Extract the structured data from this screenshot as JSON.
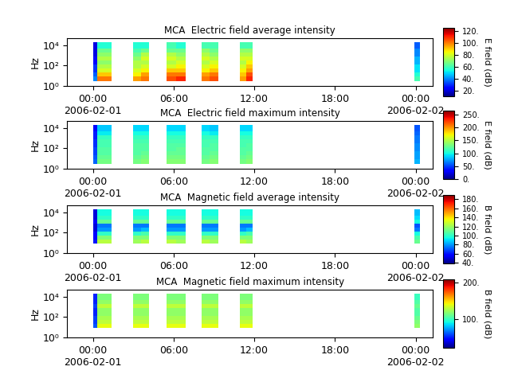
{
  "chart_data": [
    {
      "type": "heatmap",
      "title": "MCA  Electric field average intensity",
      "y_label": "Hz",
      "log": "y",
      "x_edges": [
        0.0,
        0.3,
        1.4,
        3.0,
        3.6,
        4.2,
        5.5,
        6.2,
        6.9,
        8.1,
        8.7,
        9.3,
        10.9,
        11.4,
        11.9,
        23.9,
        24.3
      ],
      "y_edges": [
        3,
        8,
        20,
        50,
        120,
        300,
        800,
        2000,
        5000,
        20000
      ],
      "cells": [
        [
          40,
          100,
          null,
          95,
          100,
          null,
          105,
          110,
          null,
          100,
          105,
          null,
          95,
          110,
          null,
          60
        ],
        [
          35,
          90,
          null,
          85,
          95,
          null,
          100,
          100,
          null,
          95,
          100,
          null,
          90,
          105,
          null,
          55
        ],
        [
          30,
          80,
          null,
          80,
          85,
          null,
          90,
          90,
          null,
          85,
          90,
          null,
          85,
          95,
          null,
          50
        ],
        [
          30,
          75,
          null,
          75,
          80,
          null,
          80,
          85,
          null,
          80,
          85,
          null,
          80,
          90,
          null,
          50
        ],
        [
          25,
          70,
          null,
          75,
          75,
          null,
          75,
          80,
          null,
          75,
          80,
          null,
          75,
          85,
          null,
          45
        ],
        [
          25,
          75,
          null,
          70,
          80,
          null,
          80,
          75,
          null,
          80,
          75,
          null,
          80,
          80,
          null,
          45
        ],
        [
          20,
          70,
          null,
          65,
          75,
          null,
          75,
          70,
          null,
          75,
          70,
          null,
          75,
          75,
          null,
          40
        ],
        [
          20,
          65,
          null,
          60,
          65,
          null,
          65,
          65,
          null,
          70,
          65,
          null,
          70,
          70,
          null,
          40
        ],
        [
          20,
          55,
          null,
          55,
          55,
          null,
          60,
          55,
          null,
          60,
          60,
          null,
          60,
          60,
          null,
          35
        ]
      ],
      "xlim": [
        -1.9,
        25.25
      ],
      "xticks": [
        {
          "value": 0,
          "label": "00:00\n2006-02-01"
        },
        {
          "value": 6,
          "label": "06:00"
        },
        {
          "value": 12,
          "label": "12:00"
        },
        {
          "value": 18,
          "label": "18:00"
        },
        {
          "value": 24,
          "label": "00:00\n2006-02-02"
        }
      ],
      "ylim": [
        1,
        50000
      ],
      "yticks": [
        {
          "value": 1,
          "label": "10⁰"
        },
        {
          "value": 100,
          "label": "10²"
        },
        {
          "value": 10000,
          "label": "10⁴"
        }
      ],
      "colorbar": {
        "label": "E field (dB)",
        "range": [
          10,
          125
        ],
        "ticks": [
          {
            "value": 20,
            "label": "20."
          },
          {
            "value": 40,
            "label": "40."
          },
          {
            "value": 60,
            "label": "60."
          },
          {
            "value": 80,
            "label": "80."
          },
          {
            "value": 100,
            "label": "100."
          },
          {
            "value": 120,
            "label": "120."
          }
        ]
      }
    },
    {
      "type": "heatmap",
      "title": "MCA  Electric field maximum intensity",
      "y_label": "Hz",
      "log": "y",
      "x_edges": [
        0.0,
        0.3,
        1.4,
        3.0,
        3.6,
        4.2,
        5.5,
        6.2,
        6.9,
        8.1,
        8.7,
        9.3,
        10.9,
        11.4,
        11.9,
        23.9,
        24.3
      ],
      "y_edges": [
        3,
        8,
        20,
        50,
        120,
        300,
        800,
        2000,
        5000,
        20000
      ],
      "cells": [
        [
          60,
          130,
          null,
          130,
          135,
          null,
          135,
          135,
          null,
          130,
          135,
          null,
          130,
          135,
          null,
          80
        ],
        [
          55,
          125,
          null,
          125,
          130,
          null,
          130,
          130,
          null,
          125,
          130,
          null,
          125,
          130,
          null,
          75
        ],
        [
          50,
          120,
          null,
          120,
          125,
          null,
          125,
          125,
          null,
          120,
          125,
          null,
          120,
          125,
          null,
          75
        ],
        [
          50,
          120,
          null,
          120,
          120,
          null,
          120,
          125,
          null,
          120,
          120,
          null,
          120,
          120,
          null,
          70
        ],
        [
          45,
          115,
          null,
          120,
          120,
          null,
          120,
          120,
          null,
          115,
          120,
          null,
          115,
          120,
          null,
          70
        ],
        [
          45,
          115,
          null,
          115,
          115,
          null,
          115,
          115,
          null,
          115,
          115,
          null,
          115,
          115,
          null,
          65
        ],
        [
          40,
          110,
          null,
          110,
          110,
          null,
          110,
          110,
          null,
          110,
          110,
          null,
          110,
          110,
          null,
          65
        ],
        [
          40,
          95,
          null,
          100,
          100,
          null,
          100,
          100,
          null,
          100,
          95,
          null,
          100,
          100,
          null,
          60
        ],
        [
          35,
          85,
          null,
          90,
          90,
          null,
          90,
          90,
          null,
          90,
          85,
          null,
          90,
          90,
          null,
          55
        ]
      ],
      "xlim": [
        -1.9,
        25.25
      ],
      "xticks": [
        {
          "value": 0,
          "label": "00:00\n2006-02-01"
        },
        {
          "value": 6,
          "label": "06:00"
        },
        {
          "value": 12,
          "label": "12:00"
        },
        {
          "value": 18,
          "label": "18:00"
        },
        {
          "value": 24,
          "label": "00:00\n2006-02-02"
        }
      ],
      "ylim": [
        1,
        50000
      ],
      "yticks": [
        {
          "value": 1,
          "label": "10⁰"
        },
        {
          "value": 100,
          "label": "10²"
        },
        {
          "value": 10000,
          "label": "10⁴"
        }
      ],
      "colorbar": {
        "label": "E field (dB)",
        "range": [
          0,
          265
        ],
        "ticks": [
          {
            "value": 0,
            "label": "0."
          },
          {
            "value": 50,
            "label": "50."
          },
          {
            "value": 100,
            "label": "100."
          },
          {
            "value": 150,
            "label": "150."
          },
          {
            "value": 200,
            "label": "200."
          },
          {
            "value": 250,
            "label": "250."
          }
        ]
      }
    },
    {
      "type": "heatmap",
      "title": "MCA  Magnetic field average intensity",
      "y_label": "Hz",
      "log": "y",
      "x_edges": [
        0.0,
        0.3,
        1.4,
        3.0,
        3.6,
        4.2,
        5.5,
        6.2,
        6.9,
        8.1,
        8.7,
        9.3,
        10.9,
        11.4,
        11.9,
        23.9,
        24.3
      ],
      "y_edges": [
        3,
        8,
        20,
        50,
        120,
        300,
        800,
        2000,
        5000,
        20000
      ],
      "cells": [
        [
          null,
          null,
          null,
          null,
          null,
          null,
          null,
          null,
          null,
          null,
          null,
          null,
          null,
          null,
          null,
          null
        ],
        [
          60,
          125,
          null,
          120,
          125,
          null,
          125,
          120,
          null,
          125,
          120,
          null,
          125,
          120,
          null,
          110
        ],
        [
          55,
          115,
          null,
          115,
          115,
          null,
          115,
          115,
          null,
          115,
          115,
          null,
          115,
          115,
          null,
          105
        ],
        [
          55,
          100,
          null,
          100,
          105,
          null,
          100,
          100,
          null,
          100,
          100,
          null,
          100,
          105,
          null,
          95
        ],
        [
          50,
          80,
          null,
          80,
          85,
          null,
          80,
          80,
          null,
          80,
          80,
          null,
          80,
          85,
          null,
          75
        ],
        [
          50,
          75,
          null,
          75,
          75,
          null,
          75,
          75,
          null,
          75,
          75,
          null,
          75,
          75,
          null,
          70
        ],
        [
          55,
          110,
          null,
          110,
          110,
          null,
          110,
          110,
          null,
          110,
          110,
          null,
          110,
          110,
          null,
          95
        ],
        [
          50,
          100,
          null,
          100,
          100,
          null,
          100,
          100,
          null,
          100,
          100,
          null,
          100,
          100,
          null,
          90
        ],
        [
          50,
          95,
          null,
          95,
          95,
          null,
          95,
          95,
          null,
          95,
          95,
          null,
          95,
          95,
          null,
          85
        ]
      ],
      "xlim": [
        -1.9,
        25.25
      ],
      "xticks": [
        {
          "value": 0,
          "label": "00:00\n2006-02-01"
        },
        {
          "value": 6,
          "label": "06:00"
        },
        {
          "value": 12,
          "label": "12:00"
        },
        {
          "value": 18,
          "label": "18:00"
        },
        {
          "value": 24,
          "label": "00:00\n2006-02-02"
        }
      ],
      "ylim": [
        1,
        50000
      ],
      "yticks": [
        {
          "value": 1,
          "label": "10⁰"
        },
        {
          "value": 100,
          "label": "10²"
        },
        {
          "value": 10000,
          "label": "10⁴"
        }
      ],
      "colorbar": {
        "label": "B field (dB)",
        "range": [
          38,
          190
        ],
        "ticks": [
          {
            "value": 40,
            "label": "40."
          },
          {
            "value": 60,
            "label": "60."
          },
          {
            "value": 80,
            "label": "80."
          },
          {
            "value": 100,
            "label": "100."
          },
          {
            "value": 120,
            "label": "120."
          },
          {
            "value": 140,
            "label": "140."
          },
          {
            "value": 160,
            "label": "160."
          },
          {
            "value": 180,
            "label": "180."
          }
        ]
      }
    },
    {
      "type": "heatmap",
      "title": "MCA  Magnetic field maximum intensity",
      "y_label": "Hz",
      "log": "y",
      "x_edges": [
        0.0,
        0.3,
        1.4,
        3.0,
        3.6,
        4.2,
        5.5,
        6.2,
        6.9,
        8.1,
        8.7,
        9.3,
        10.9,
        11.4,
        11.9,
        23.9,
        24.3
      ],
      "y_edges": [
        3,
        8,
        20,
        50,
        120,
        300,
        800,
        2000,
        5000,
        20000
      ],
      "cells": [
        [
          null,
          null,
          null,
          null,
          null,
          null,
          null,
          null,
          null,
          null,
          null,
          null,
          null,
          null,
          null,
          null
        ],
        [
          60,
          140,
          null,
          140,
          140,
          null,
          140,
          140,
          null,
          140,
          140,
          null,
          140,
          140,
          null,
          120
        ],
        [
          55,
          130,
          null,
          130,
          130,
          null,
          130,
          130,
          null,
          130,
          130,
          null,
          130,
          130,
          null,
          115
        ],
        [
          55,
          125,
          null,
          125,
          125,
          null,
          125,
          125,
          null,
          125,
          125,
          null,
          125,
          125,
          null,
          110
        ],
        [
          50,
          120,
          null,
          120,
          120,
          null,
          120,
          120,
          null,
          120,
          120,
          null,
          120,
          120,
          null,
          105
        ],
        [
          50,
          120,
          null,
          120,
          120,
          null,
          120,
          120,
          null,
          120,
          120,
          null,
          120,
          120,
          null,
          105
        ],
        [
          55,
          130,
          null,
          130,
          130,
          null,
          130,
          130,
          null,
          130,
          130,
          null,
          130,
          130,
          null,
          110
        ],
        [
          50,
          120,
          null,
          120,
          120,
          null,
          120,
          120,
          null,
          120,
          120,
          null,
          120,
          120,
          null,
          105
        ],
        [
          50,
          115,
          null,
          115,
          115,
          null,
          115,
          115,
          null,
          115,
          115,
          null,
          115,
          115,
          null,
          100
        ]
      ],
      "xlim": [
        -1.9,
        25.25
      ],
      "xticks": [
        {
          "value": 0,
          "label": "00:00\n2006-02-01"
        },
        {
          "value": 6,
          "label": "06:00"
        },
        {
          "value": 12,
          "label": "12:00"
        },
        {
          "value": 18,
          "label": "18:00"
        },
        {
          "value": 24,
          "label": "00:00\n2006-02-02"
        }
      ],
      "ylim": [
        1,
        50000
      ],
      "yticks": [
        {
          "value": 1,
          "label": "10⁰"
        },
        {
          "value": 100,
          "label": "10²"
        },
        {
          "value": 10000,
          "label": "10⁴"
        }
      ],
      "colorbar": {
        "label": "B field (dB)",
        "range": [
          20,
          210
        ],
        "ticks": [
          {
            "value": 100,
            "label": "100."
          },
          {
            "value": 200,
            "label": "200."
          }
        ]
      }
    }
  ]
}
